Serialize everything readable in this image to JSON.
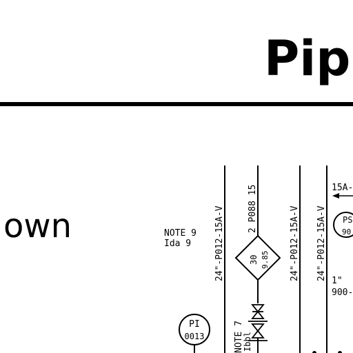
{
  "page": {
    "title_fragment": "Pipi",
    "subtitle_fragment": "own"
  },
  "diagram": {
    "note_left": {
      "line1": "NOTE 9",
      "line2": "Ida  9"
    },
    "line_labels": [
      {
        "id": "l1",
        "text": "24\"-P012-15A-V"
      },
      {
        "id": "l2",
        "text": "2 P088 15"
      },
      {
        "id": "l3",
        "text": "24\"-P012-15A-V"
      },
      {
        "id": "l4",
        "text": "24\"-P012-15A-V"
      }
    ],
    "diamond": {
      "top": "30",
      "bottom": "9.85"
    },
    "note_bottom": {
      "line1": "NOTE 7",
      "line2": "Ibbl"
    },
    "instrument_pi": {
      "tag": "PI",
      "number": "0013"
    },
    "instrument_ps": {
      "tag": "PS",
      "number": "90"
    },
    "top_right_label": "15A-",
    "right_size": "1\"",
    "right_code": "900-"
  }
}
